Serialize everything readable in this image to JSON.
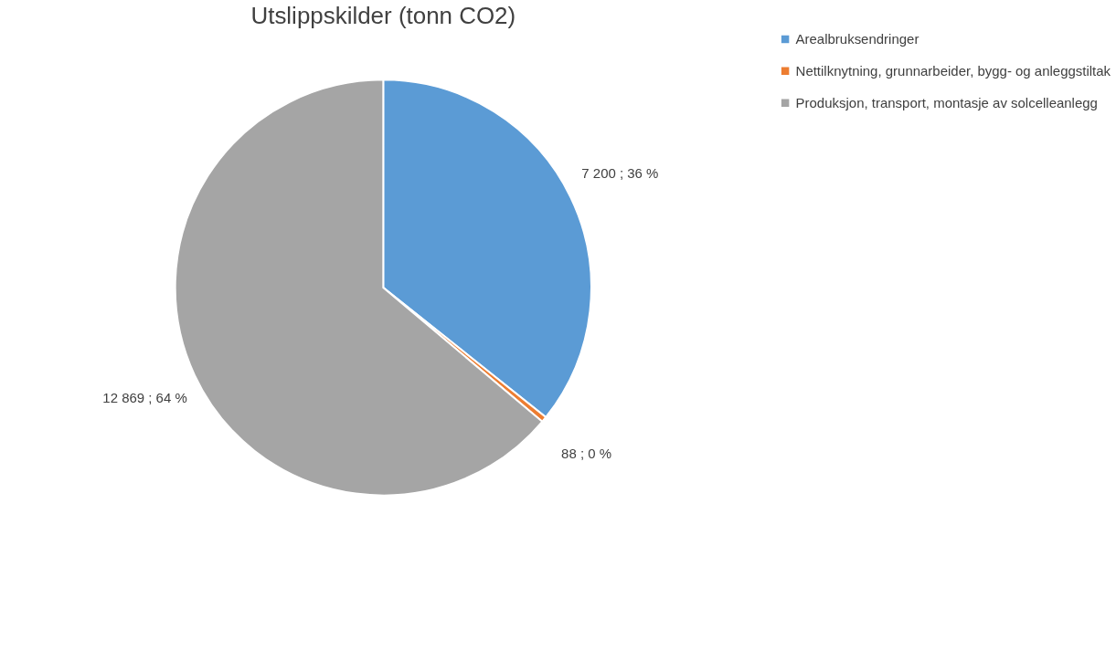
{
  "chart_data": {
    "type": "pie",
    "title": "Utslippskilder (tonn CO2)",
    "categories": [
      "Arealbruksendringer",
      "Nettilknytning, grunnarbeider, bygg- og anleggstiltak",
      "Produksjon, transport, montasje av solcelleanlegg"
    ],
    "values": [
      7200,
      88,
      12869
    ],
    "colors": [
      "#5b9bd5",
      "#ed7d31",
      "#a5a5a5"
    ],
    "value_labels": [
      "7 200 ; 36 %",
      "88 ; 0 %",
      "12 869 ; 64 %"
    ],
    "legend": "right"
  }
}
